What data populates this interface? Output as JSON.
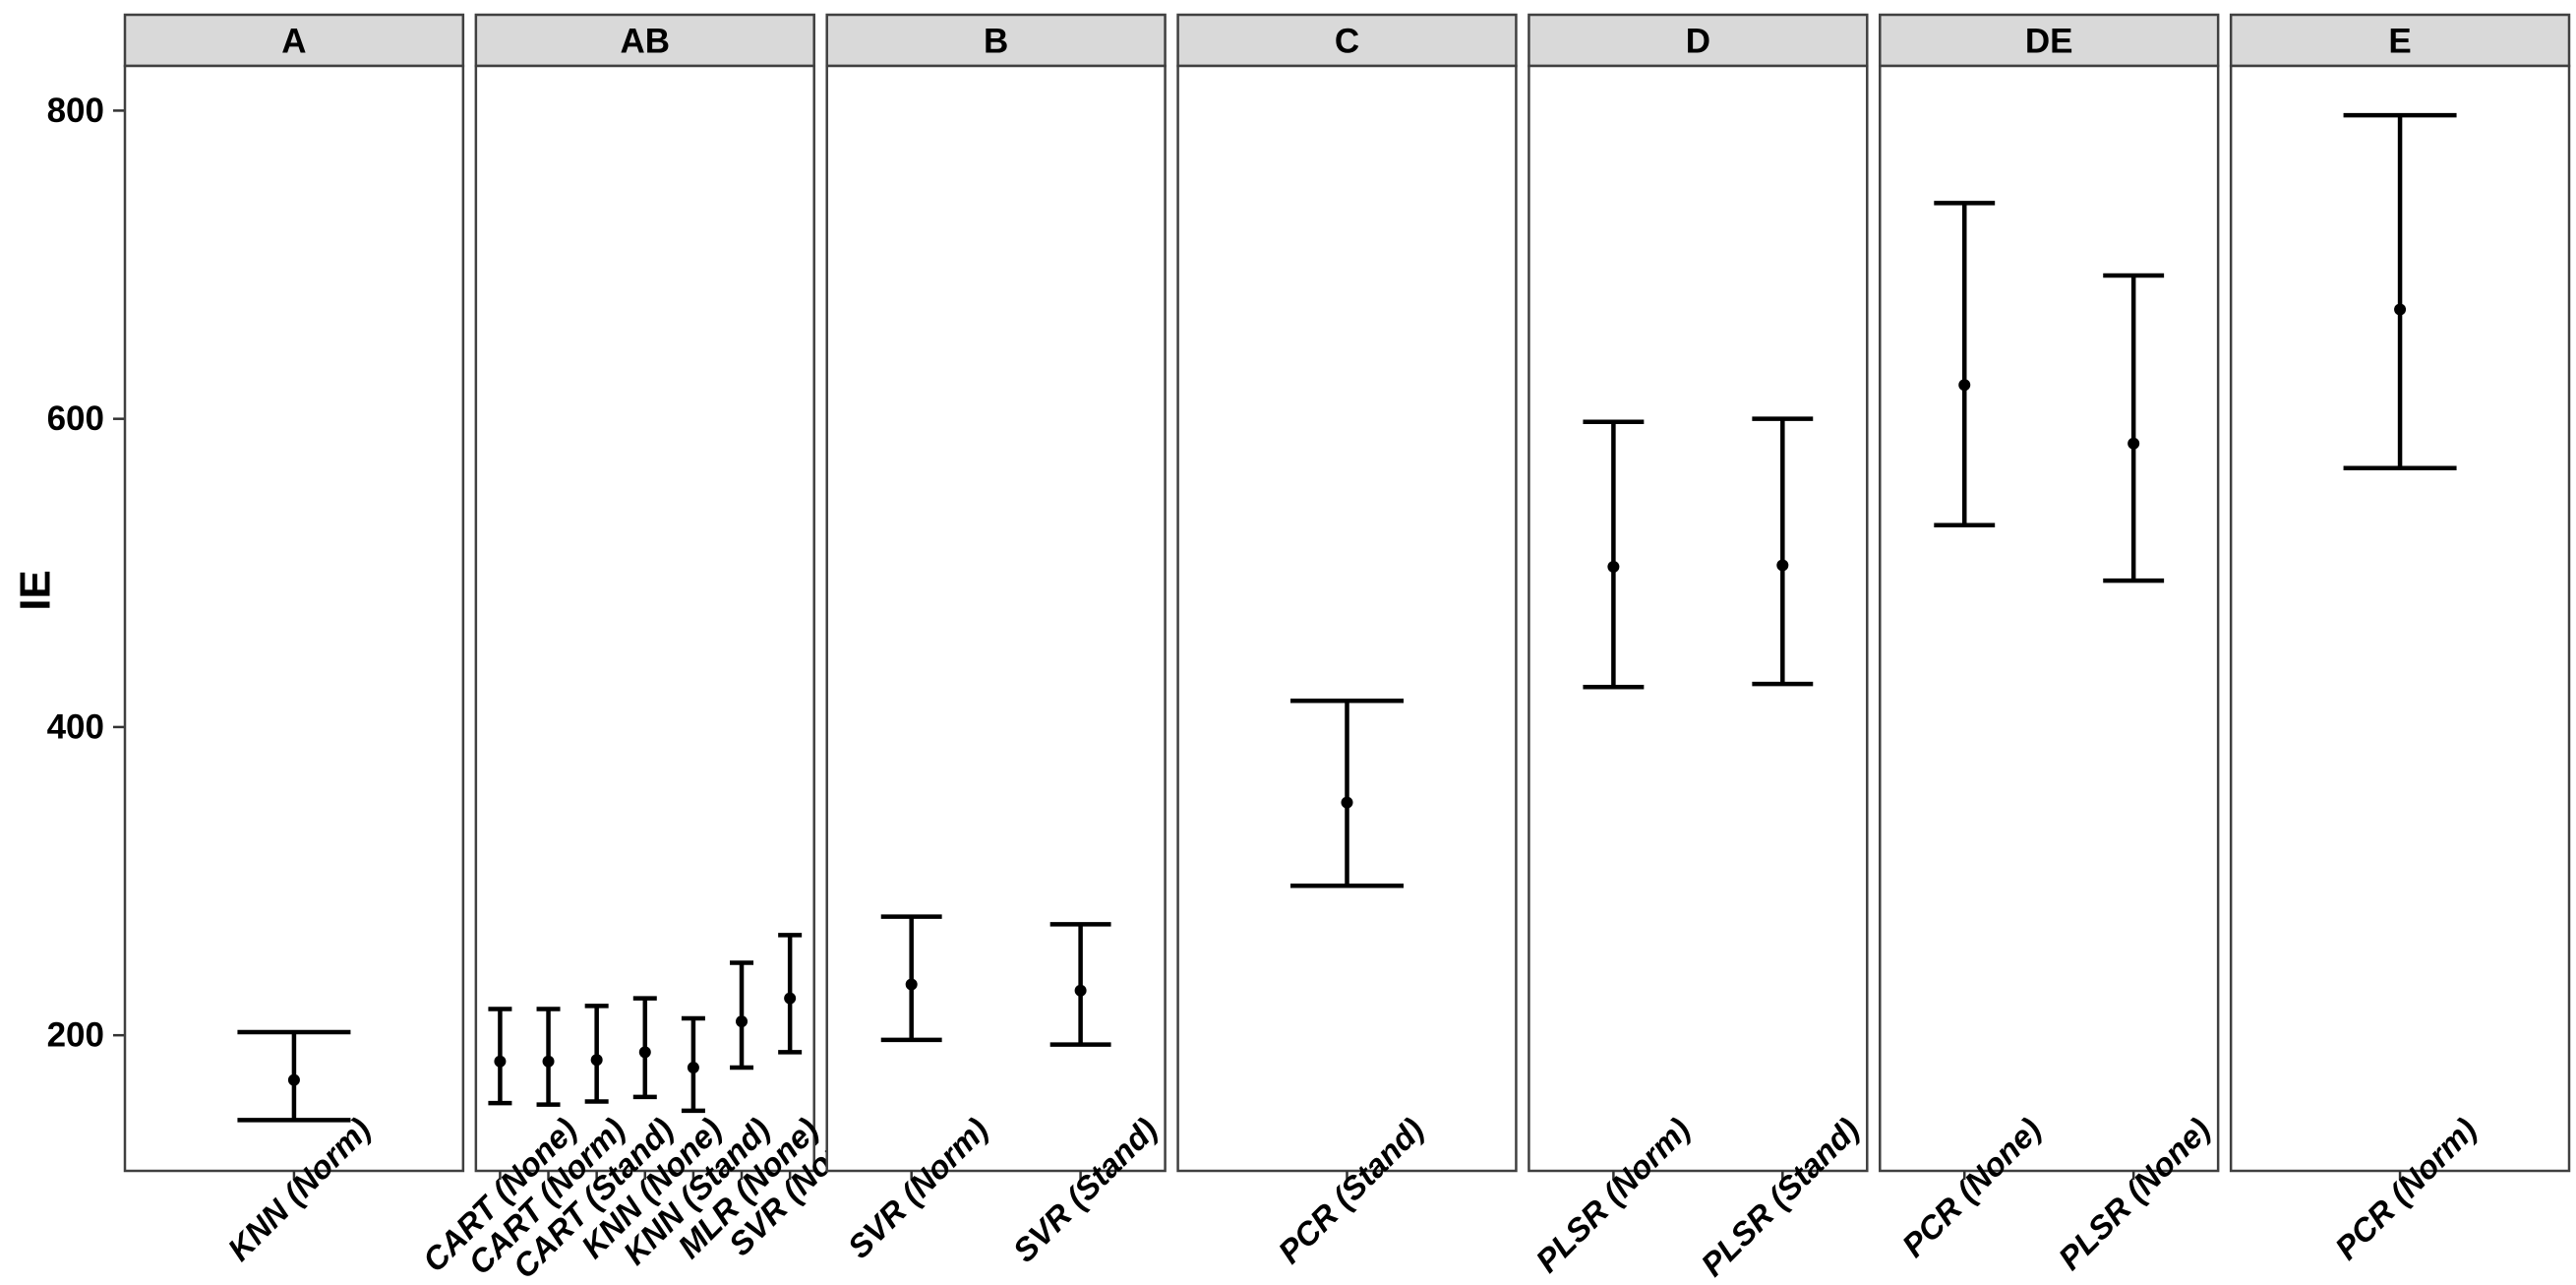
{
  "figure": {
    "background": "#ffffff"
  },
  "chart_data": {
    "type": "scatter",
    "subtype": "point-with-errorbar-facets",
    "title": "",
    "xlabel": "",
    "ylabel": "IE",
    "grid": false,
    "legend": false,
    "ylim": [
      112,
      829
    ],
    "yticks": [
      200,
      400,
      600,
      800
    ],
    "colors": {
      "strip_fill": "#d9d9d9",
      "panel_fill": "#ffffff",
      "border": "#404040",
      "marker": "#000000",
      "tick": "#333333"
    },
    "facets": [
      {
        "label": "A",
        "points": [
          {
            "x": "KNN (Norm)",
            "mean": 171,
            "lo": 145,
            "hi": 202
          }
        ]
      },
      {
        "label": "AB",
        "points": [
          {
            "x": "CART (None)",
            "mean": 183,
            "lo": 156,
            "hi": 217
          },
          {
            "x": "CART (Norm)",
            "mean": 183,
            "lo": 155,
            "hi": 217
          },
          {
            "x": "CART (Stand)",
            "mean": 184,
            "lo": 157,
            "hi": 219
          },
          {
            "x": "KNN (None)",
            "mean": 189,
            "lo": 160,
            "hi": 224
          },
          {
            "x": "KNN (Stand)",
            "mean": 179,
            "lo": 151,
            "hi": 211
          },
          {
            "x": "MLR (None)",
            "mean": 209,
            "lo": 179,
            "hi": 247
          },
          {
            "x": "SVR (None)",
            "mean": 224,
            "lo": 189,
            "hi": 265
          }
        ]
      },
      {
        "label": "B",
        "points": [
          {
            "x": "SVR (Norm)",
            "mean": 233,
            "lo": 197,
            "hi": 277
          },
          {
            "x": "SVR (Stand)",
            "mean": 229,
            "lo": 194,
            "hi": 272
          }
        ]
      },
      {
        "label": "C",
        "points": [
          {
            "x": "PCR (Stand)",
            "mean": 351,
            "lo": 297,
            "hi": 417
          }
        ]
      },
      {
        "label": "D",
        "points": [
          {
            "x": "PLSR (Norm)",
            "mean": 504,
            "lo": 426,
            "hi": 598
          },
          {
            "x": "PLSR (Stand)",
            "mean": 505,
            "lo": 428,
            "hi": 600
          }
        ]
      },
      {
        "label": "DE",
        "points": [
          {
            "x": "PCR (None)",
            "mean": 622,
            "lo": 531,
            "hi": 740
          },
          {
            "x": "PLSR (None)",
            "mean": 584,
            "lo": 495,
            "hi": 693
          }
        ]
      },
      {
        "label": "E",
        "points": [
          {
            "x": "PCR (Norm)",
            "mean": 671,
            "lo": 568,
            "hi": 797
          }
        ]
      }
    ]
  }
}
